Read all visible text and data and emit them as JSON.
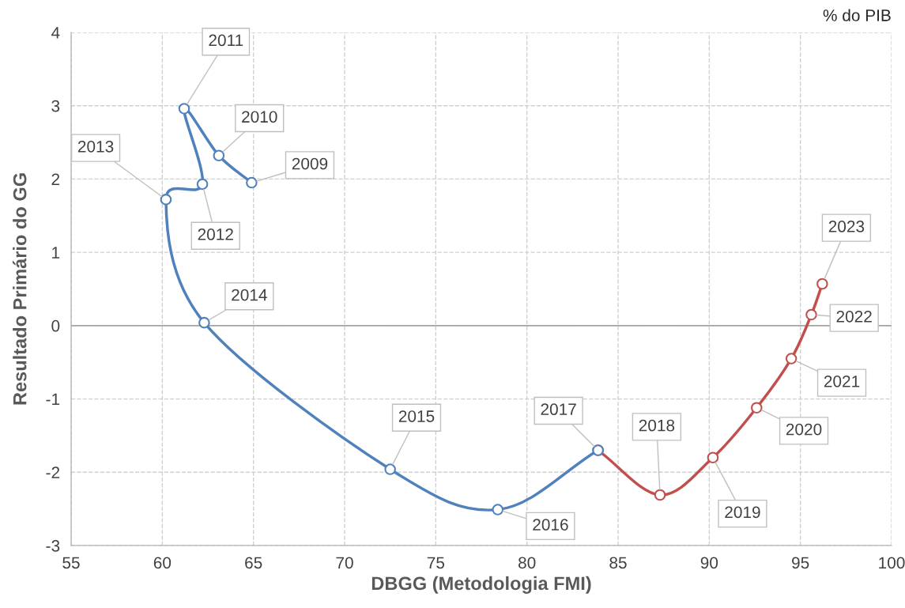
{
  "chart_data": {
    "type": "line",
    "xlabel": "DBGG (Metodologia FMI)",
    "ylabel": "Resultado Primário do GG",
    "xlim": [
      55,
      100
    ],
    "xticks": [
      55,
      60,
      65,
      70,
      75,
      80,
      85,
      90,
      95,
      100
    ],
    "ylim": [
      -3,
      4
    ],
    "yticks": [
      -3,
      -2,
      -1,
      0,
      1,
      2,
      3,
      4
    ],
    "grid": true,
    "marker": "circle",
    "line_style": "solid",
    "series": [
      {
        "color": "#c0504d",
        "x": [
          83.9,
          87.3,
          90.2,
          92.6,
          94.5,
          95.6,
          96.2
        ],
        "values": [
          -1.7,
          -2.31,
          -1.8,
          -1.12,
          -0.45,
          0.15,
          0.57
        ]
      },
      {
        "color": "#4f81bd",
        "x": [
          64.9,
          63.1,
          61.2,
          62.2,
          60.2,
          62.3,
          72.5,
          78.4,
          83.9
        ],
        "values": [
          1.95,
          2.32,
          2.96,
          1.93,
          1.72,
          0.04,
          -1.96,
          -2.51,
          -1.7
        ]
      }
    ],
    "ref_lines": [
      {
        "axis": "y",
        "value": 0,
        "color": "#a6a6a6"
      }
    ],
    "annotations": [
      "% do PIB",
      {
        "text": "2009",
        "x": 64.9,
        "y": 1.95
      },
      {
        "text": "2010",
        "x": 63.1,
        "y": 2.32
      },
      {
        "text": "2011",
        "x": 61.2,
        "y": 2.96
      },
      {
        "text": "2012",
        "x": 62.2,
        "y": 1.93
      },
      {
        "text": "2013",
        "x": 60.2,
        "y": 1.72
      },
      {
        "text": "2014",
        "x": 62.3,
        "y": 0.04
      },
      {
        "text": "2015",
        "x": 72.5,
        "y": -1.96
      },
      {
        "text": "2016",
        "x": 78.4,
        "y": -2.51
      },
      {
        "text": "2017",
        "x": 83.9,
        "y": -1.7
      },
      {
        "text": "2018",
        "x": 87.3,
        "y": -2.31
      },
      {
        "text": "2019",
        "x": 90.2,
        "y": -1.8
      },
      {
        "text": "2020",
        "x": 92.6,
        "y": -1.12
      },
      {
        "text": "2021",
        "x": 94.5,
        "y": -0.45
      },
      {
        "text": "2022",
        "x": 95.6,
        "y": 0.15
      },
      {
        "text": "2023",
        "x": 96.2,
        "y": 0.57
      }
    ]
  }
}
